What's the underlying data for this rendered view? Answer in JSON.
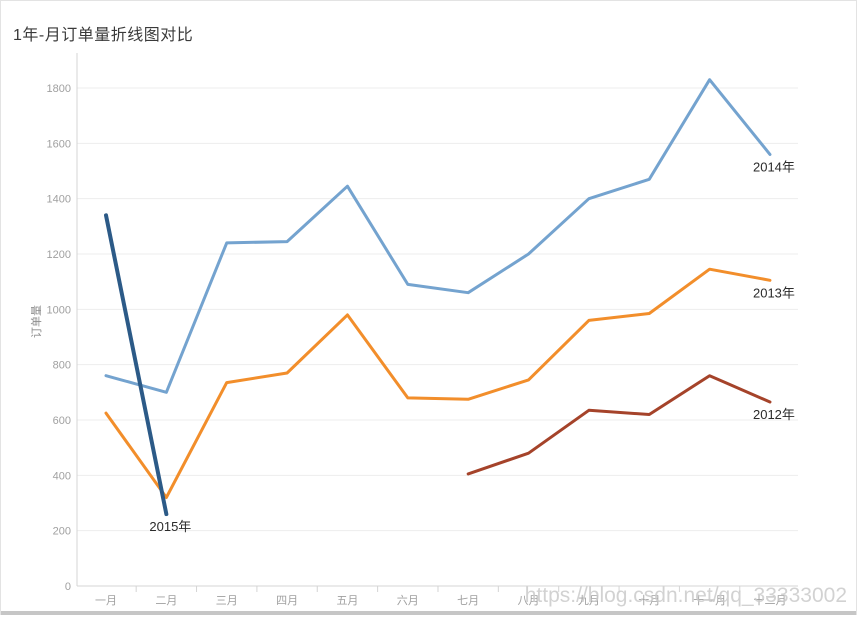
{
  "title": "1年-月订单量折线图对比",
  "watermark": "https://blog.csdn.net/qq_33333002",
  "colors": {
    "grid": "#ededed",
    "axis": "#d4d4d4",
    "tick_label": "#a0a0a0",
    "series_label": "#2b2b2b",
    "title": "#3a3a3a",
    "watermark": "#cbcbcb"
  },
  "chart_data": {
    "type": "line",
    "title": "1年-月订单量折线图对比",
    "xlabel": "",
    "ylabel": "订单量",
    "ylim": [
      0,
      1925
    ],
    "grid": "horizontal",
    "legend_position": "inline-end-of-line",
    "categories": [
      "一月",
      "二月",
      "三月",
      "四月",
      "五月",
      "六月",
      "七月",
      "八月",
      "九月",
      "十月",
      "十一月",
      "十二月"
    ],
    "y_ticks": [
      0,
      200,
      400,
      600,
      800,
      1000,
      1200,
      1400,
      1600,
      1800
    ],
    "series": [
      {
        "name": "2014年",
        "color": "#74a3cf",
        "width": 3,
        "start_index": 0,
        "values": [
          760,
          700,
          1240,
          1245,
          1445,
          1090,
          1060,
          1200,
          1400,
          1470,
          1830,
          1560
        ]
      },
      {
        "name": "2013年",
        "color": "#f28e2b",
        "width": 3,
        "start_index": 0,
        "values": [
          625,
          320,
          735,
          770,
          980,
          680,
          675,
          745,
          960,
          985,
          1145,
          1105
        ]
      },
      {
        "name": "2012年",
        "color": "#a5432a",
        "width": 3,
        "start_index": 6,
        "values": [
          405,
          480,
          635,
          620,
          760,
          665
        ]
      },
      {
        "name": "2015年",
        "color": "#2c5a87",
        "width": 4,
        "start_index": 0,
        "values": [
          1340,
          260
        ]
      }
    ]
  }
}
